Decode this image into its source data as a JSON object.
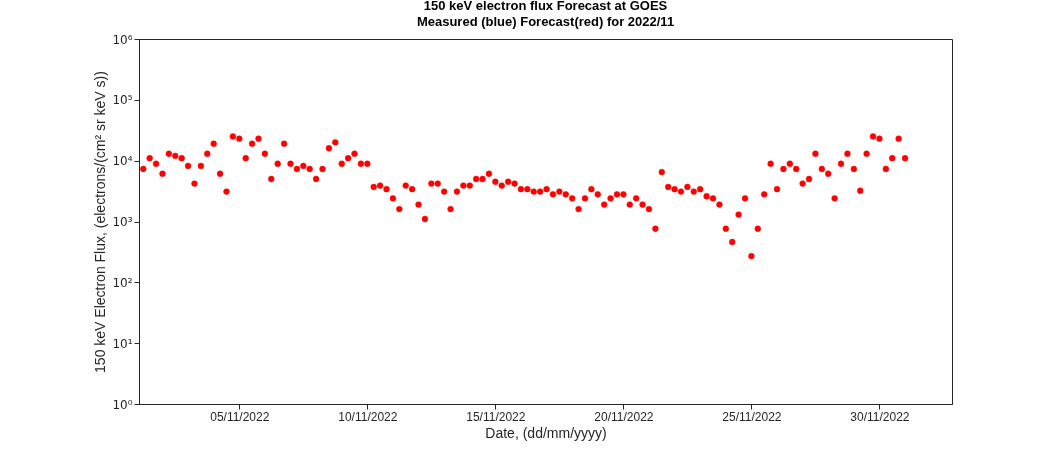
{
  "chart_data": {
    "type": "scatter",
    "title": "150 keV electron flux Forecast at GOES",
    "subtitle": "Measured (blue) Forecast(red) for 2022/11",
    "xlabel": "Date, (dd/mm/yyyy)",
    "ylabel": "150 keV Electron Flux, (electrons/(cm² sr keV s))",
    "log": true,
    "grid": false,
    "marker": "circle",
    "xlim": [
      "2022-11-01T02:00",
      "2022-12-02T20:00"
    ],
    "xticks": [
      {
        "value": "2022-11-05",
        "label": "05/11/2022"
      },
      {
        "value": "2022-11-10",
        "label": "10/11/2022"
      },
      {
        "value": "2022-11-15",
        "label": "15/11/2022"
      },
      {
        "value": "2022-11-20",
        "label": "20/11/2022"
      },
      {
        "value": "2022-11-25",
        "label": "25/11/2022"
      },
      {
        "value": "2022-11-30",
        "label": "30/11/2022"
      }
    ],
    "ylim": [
      1,
      1000000
    ],
    "yticks": [
      {
        "value": 1,
        "label": "10⁰"
      },
      {
        "value": 10,
        "label": "10¹"
      },
      {
        "value": 100,
        "label": "10²"
      },
      {
        "value": 1000,
        "label": "10³"
      },
      {
        "value": 10000,
        "label": "10⁴"
      },
      {
        "value": 100000,
        "label": "10⁵"
      },
      {
        "value": 1000000,
        "label": "10⁶"
      }
    ],
    "series": [
      {
        "color": "#ff0000",
        "x": [
          "2022-11-01T06:00",
          "2022-11-01T12:00",
          "2022-11-01T18:00",
          "2022-11-02T00:00",
          "2022-11-02T06:00",
          "2022-11-02T12:00",
          "2022-11-02T18:00",
          "2022-11-03T00:00",
          "2022-11-03T06:00",
          "2022-11-03T12:00",
          "2022-11-03T18:00",
          "2022-11-04T00:00",
          "2022-11-04T06:00",
          "2022-11-04T12:00",
          "2022-11-04T18:00",
          "2022-11-05T00:00",
          "2022-11-05T06:00",
          "2022-11-05T12:00",
          "2022-11-05T18:00",
          "2022-11-06T00:00",
          "2022-11-06T06:00",
          "2022-11-06T12:00",
          "2022-11-06T18:00",
          "2022-11-07T00:00",
          "2022-11-07T06:00",
          "2022-11-07T12:00",
          "2022-11-07T18:00",
          "2022-11-08T00:00",
          "2022-11-08T06:00",
          "2022-11-08T12:00",
          "2022-11-08T18:00",
          "2022-11-09T00:00",
          "2022-11-09T06:00",
          "2022-11-09T12:00",
          "2022-11-09T18:00",
          "2022-11-10T00:00",
          "2022-11-10T06:00",
          "2022-11-10T12:00",
          "2022-11-10T18:00",
          "2022-11-11T00:00",
          "2022-11-11T06:00",
          "2022-11-11T12:00",
          "2022-11-11T18:00",
          "2022-11-12T00:00",
          "2022-11-12T06:00",
          "2022-11-12T12:00",
          "2022-11-12T18:00",
          "2022-11-13T00:00",
          "2022-11-13T06:00",
          "2022-11-13T12:00",
          "2022-11-13T18:00",
          "2022-11-14T00:00",
          "2022-11-14T06:00",
          "2022-11-14T12:00",
          "2022-11-14T18:00",
          "2022-11-15T00:00",
          "2022-11-15T06:00",
          "2022-11-15T12:00",
          "2022-11-15T18:00",
          "2022-11-16T00:00",
          "2022-11-16T06:00",
          "2022-11-16T12:00",
          "2022-11-16T18:00",
          "2022-11-17T00:00",
          "2022-11-17T06:00",
          "2022-11-17T12:00",
          "2022-11-17T18:00",
          "2022-11-18T00:00",
          "2022-11-18T06:00",
          "2022-11-18T12:00",
          "2022-11-18T18:00",
          "2022-11-19T00:00",
          "2022-11-19T06:00",
          "2022-11-19T12:00",
          "2022-11-19T18:00",
          "2022-11-20T00:00",
          "2022-11-20T06:00",
          "2022-11-20T12:00",
          "2022-11-20T18:00",
          "2022-11-21T00:00",
          "2022-11-21T06:00",
          "2022-11-21T12:00",
          "2022-11-21T18:00",
          "2022-11-22T00:00",
          "2022-11-22T06:00",
          "2022-11-22T12:00",
          "2022-11-22T18:00",
          "2022-11-23T00:00",
          "2022-11-23T06:00",
          "2022-11-23T12:00",
          "2022-11-23T18:00",
          "2022-11-24T00:00",
          "2022-11-24T06:00",
          "2022-11-24T12:00",
          "2022-11-24T18:00",
          "2022-11-25T00:00",
          "2022-11-25T06:00",
          "2022-11-25T12:00",
          "2022-11-25T18:00",
          "2022-11-26T00:00",
          "2022-11-26T06:00",
          "2022-11-26T12:00",
          "2022-11-26T18:00",
          "2022-11-27T00:00",
          "2022-11-27T06:00",
          "2022-11-27T12:00",
          "2022-11-27T18:00",
          "2022-11-28T00:00",
          "2022-11-28T06:00",
          "2022-11-28T12:00",
          "2022-11-28T18:00",
          "2022-11-29T00:00",
          "2022-11-29T06:00",
          "2022-11-29T12:00",
          "2022-11-29T18:00",
          "2022-11-30T00:00",
          "2022-11-30T06:00",
          "2022-11-30T12:00",
          "2022-11-30T18:00",
          "2022-12-01T00:00"
        ],
        "values": [
          7300,
          11000,
          8900,
          6100,
          13000,
          12000,
          11000,
          8200,
          4200,
          8200,
          13000,
          19000,
          6100,
          3100,
          25000,
          23000,
          11000,
          19000,
          23000,
          13000,
          5000,
          8900,
          19000,
          8900,
          7300,
          8200,
          7300,
          5000,
          7300,
          16000,
          20000,
          8900,
          11000,
          13000,
          8900,
          8900,
          3700,
          3900,
          3400,
          2400,
          1600,
          3900,
          3400,
          1900,
          1100,
          4200,
          4200,
          3100,
          1600,
          3100,
          3900,
          3900,
          5000,
          5000,
          6100,
          4500,
          3900,
          4500,
          4200,
          3400,
          3400,
          3100,
          3100,
          3400,
          2800,
          3100,
          2800,
          2400,
          1600,
          2400,
          3400,
          2800,
          1900,
          2400,
          2800,
          2800,
          1900,
          2400,
          1900,
          1600,
          760,
          6500,
          3700,
          3400,
          3100,
          3700,
          3100,
          3400,
          2600,
          2400,
          1900,
          760,
          460,
          1300,
          2400,
          270,
          760,
          2800,
          8900,
          3400,
          7300,
          8900,
          7300,
          4200,
          5000,
          13000,
          7300,
          6100,
          2400,
          8900,
          13000,
          7300,
          3200,
          13000,
          25000,
          23000,
          7300,
          11000,
          23000,
          11000
        ]
      }
    ]
  }
}
